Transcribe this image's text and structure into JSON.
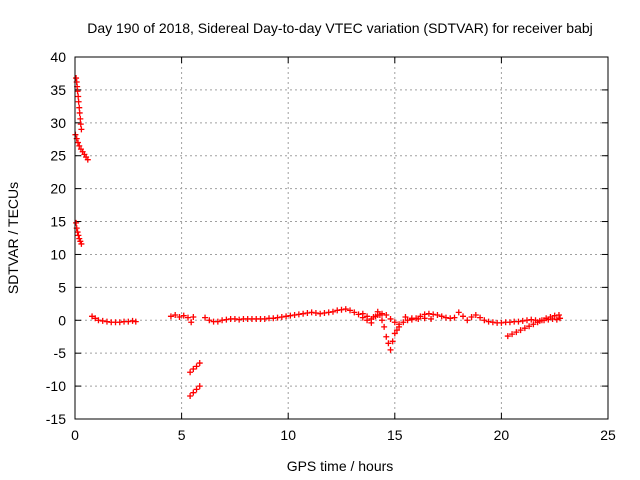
{
  "chart_data": {
    "type": "scatter",
    "title": "Day 190 of 2018, Sidereal Day-to-day VTEC variation (SDTVAR) for receiver babj",
    "xlabel": "GPS time / hours",
    "ylabel": "SDTVAR / TECUs",
    "xlim": [
      0,
      25
    ],
    "ylim": [
      -15,
      40
    ],
    "xticks": [
      0,
      5,
      10,
      15,
      20,
      25
    ],
    "yticks": [
      -15,
      -10,
      -5,
      0,
      5,
      10,
      15,
      20,
      25,
      30,
      35,
      40
    ],
    "grid": true,
    "marker": "plus",
    "color": "#ff0000",
    "series": [
      {
        "name": "SDTVAR",
        "points": [
          [
            0.05,
            36.8
          ],
          [
            0.08,
            36.2
          ],
          [
            0.1,
            35.5
          ],
          [
            0.12,
            34.8
          ],
          [
            0.15,
            34.0
          ],
          [
            0.17,
            33.2
          ],
          [
            0.2,
            32.3
          ],
          [
            0.22,
            31.5
          ],
          [
            0.25,
            30.6
          ],
          [
            0.27,
            29.8
          ],
          [
            0.3,
            29.0
          ],
          [
            0.02,
            28.2
          ],
          [
            0.08,
            27.6
          ],
          [
            0.14,
            27.0
          ],
          [
            0.2,
            26.5
          ],
          [
            0.28,
            26.0
          ],
          [
            0.36,
            25.6
          ],
          [
            0.44,
            25.2
          ],
          [
            0.52,
            24.8
          ],
          [
            0.6,
            24.4
          ],
          [
            0.05,
            14.8
          ],
          [
            0.08,
            14.0
          ],
          [
            0.12,
            13.4
          ],
          [
            0.16,
            12.9
          ],
          [
            0.2,
            12.4
          ],
          [
            0.25,
            12.0
          ],
          [
            0.3,
            11.6
          ],
          [
            0.8,
            0.6
          ],
          [
            0.95,
            0.3
          ],
          [
            1.1,
            0.0
          ],
          [
            1.3,
            -0.1
          ],
          [
            1.5,
            -0.2
          ],
          [
            1.7,
            -0.3
          ],
          [
            1.9,
            -0.3
          ],
          [
            2.1,
            -0.3
          ],
          [
            2.3,
            -0.2
          ],
          [
            2.5,
            -0.2
          ],
          [
            2.7,
            -0.1
          ],
          [
            2.85,
            -0.2
          ],
          [
            4.5,
            0.6
          ],
          [
            4.7,
            0.8
          ],
          [
            4.9,
            0.5
          ],
          [
            5.1,
            0.7
          ],
          [
            5.3,
            0.4
          ],
          [
            5.45,
            -0.3
          ],
          [
            5.55,
            0.5
          ],
          [
            5.4,
            -7.9
          ],
          [
            5.55,
            -7.4
          ],
          [
            5.7,
            -7.0
          ],
          [
            5.85,
            -6.5
          ],
          [
            5.4,
            -11.5
          ],
          [
            5.55,
            -11.0
          ],
          [
            5.7,
            -10.5
          ],
          [
            5.85,
            -10.0
          ],
          [
            6.1,
            0.4
          ],
          [
            6.3,
            0.0
          ],
          [
            6.5,
            -0.2
          ],
          [
            6.7,
            -0.2
          ],
          [
            6.9,
            0.0
          ],
          [
            7.1,
            0.1
          ],
          [
            7.3,
            0.2
          ],
          [
            7.5,
            0.2
          ],
          [
            7.7,
            0.1
          ],
          [
            7.9,
            0.2
          ],
          [
            8.1,
            0.2
          ],
          [
            8.3,
            0.2
          ],
          [
            8.5,
            0.2
          ],
          [
            8.7,
            0.2
          ],
          [
            8.9,
            0.2
          ],
          [
            9.1,
            0.3
          ],
          [
            9.3,
            0.3
          ],
          [
            9.5,
            0.4
          ],
          [
            9.7,
            0.5
          ],
          [
            9.9,
            0.6
          ],
          [
            10.1,
            0.7
          ],
          [
            10.3,
            0.8
          ],
          [
            10.5,
            0.9
          ],
          [
            10.7,
            1.0
          ],
          [
            10.9,
            1.1
          ],
          [
            11.1,
            1.2
          ],
          [
            11.3,
            1.1
          ],
          [
            11.5,
            1.0
          ],
          [
            11.7,
            1.1
          ],
          [
            11.9,
            1.2
          ],
          [
            12.1,
            1.3
          ],
          [
            12.3,
            1.5
          ],
          [
            12.5,
            1.6
          ],
          [
            12.7,
            1.7
          ],
          [
            12.9,
            1.5
          ],
          [
            13.1,
            1.2
          ],
          [
            13.3,
            0.9
          ],
          [
            13.5,
            0.4
          ],
          [
            13.7,
            0.0
          ],
          [
            13.9,
            -0.4
          ],
          [
            13.5,
            1.0
          ],
          [
            13.7,
            0.6
          ],
          [
            13.9,
            0.2
          ],
          [
            14.1,
            0.6
          ],
          [
            14.2,
            1.3
          ],
          [
            14.3,
            0.8
          ],
          [
            14.4,
            0.0
          ],
          [
            14.5,
            -1.0
          ],
          [
            14.6,
            -2.5
          ],
          [
            14.7,
            -3.5
          ],
          [
            14.8,
            -4.5
          ],
          [
            14.9,
            -3.2
          ],
          [
            15.0,
            -2.0
          ],
          [
            15.1,
            -1.5
          ],
          [
            15.2,
            -1.0
          ],
          [
            15.4,
            -0.3
          ],
          [
            15.6,
            0.0
          ],
          [
            15.8,
            0.1
          ],
          [
            16.0,
            0.3
          ],
          [
            16.2,
            0.6
          ],
          [
            16.4,
            0.9
          ],
          [
            16.6,
            1.0
          ],
          [
            16.8,
            0.9
          ],
          [
            17.0,
            0.8
          ],
          [
            17.2,
            0.6
          ],
          [
            17.4,
            0.4
          ],
          [
            17.6,
            0.3
          ],
          [
            17.8,
            0.4
          ],
          [
            14.0,
            0.5
          ],
          [
            14.2,
            0.8
          ],
          [
            14.4,
            1.0
          ],
          [
            14.6,
            0.8
          ],
          [
            14.8,
            0.2
          ],
          [
            15.0,
            -0.3
          ],
          [
            15.2,
            -0.6
          ],
          [
            15.5,
            0.5
          ],
          [
            15.8,
            0.3
          ],
          [
            16.1,
            0.2
          ],
          [
            16.4,
            0.3
          ],
          [
            16.7,
            0.2
          ],
          [
            18.0,
            1.2
          ],
          [
            18.2,
            0.6
          ],
          [
            18.4,
            0.0
          ],
          [
            18.6,
            0.5
          ],
          [
            18.8,
            0.8
          ],
          [
            19.0,
            0.4
          ],
          [
            19.2,
            0.0
          ],
          [
            19.4,
            -0.2
          ],
          [
            19.6,
            -0.3
          ],
          [
            19.8,
            -0.4
          ],
          [
            20.0,
            -0.4
          ],
          [
            20.2,
            -0.3
          ],
          [
            20.4,
            -0.3
          ],
          [
            20.6,
            -0.2
          ],
          [
            20.8,
            -0.2
          ],
          [
            21.0,
            -0.1
          ],
          [
            21.2,
            0.0
          ],
          [
            21.4,
            0.1
          ],
          [
            21.6,
            0.0
          ],
          [
            21.8,
            -0.1
          ],
          [
            22.0,
            0.0
          ],
          [
            22.2,
            0.1
          ],
          [
            22.4,
            0.2
          ],
          [
            22.6,
            0.1
          ],
          [
            22.75,
            0.3
          ],
          [
            20.3,
            -2.4
          ],
          [
            20.5,
            -2.1
          ],
          [
            20.7,
            -1.8
          ],
          [
            20.9,
            -1.5
          ],
          [
            21.1,
            -1.2
          ],
          [
            21.3,
            -0.9
          ],
          [
            21.5,
            -0.6
          ],
          [
            21.7,
            -0.3
          ],
          [
            21.9,
            0.0
          ],
          [
            22.1,
            0.3
          ],
          [
            22.3,
            0.5
          ],
          [
            22.5,
            0.7
          ],
          [
            22.7,
            0.8
          ]
        ]
      }
    ]
  }
}
